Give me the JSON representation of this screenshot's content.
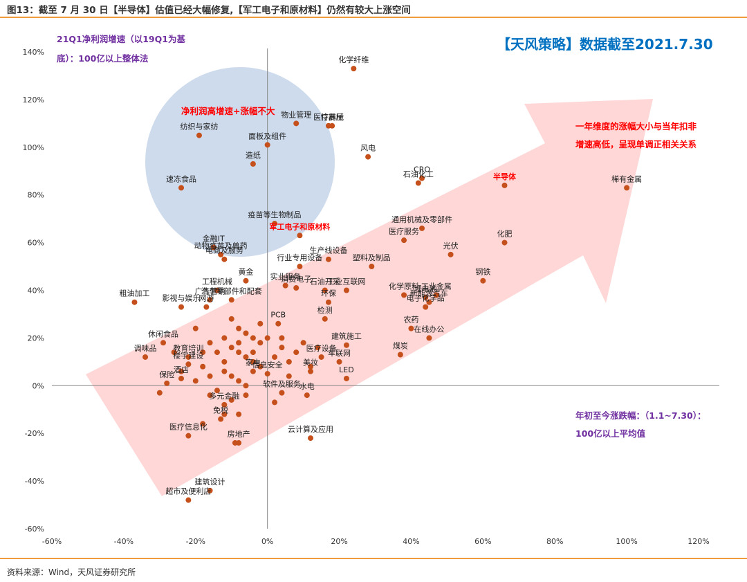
{
  "figure_title": "图13：截至 7 月 30 日【半导体】估值已经大幅修复,【军工电子和原材料】仍然有较大上涨空间",
  "source": "资料来源：Wind，天风证券研究所",
  "annotations": {
    "ylabel_line1": "21Q1净利润增速（以19Q1为基",
    "ylabel_line2": "底）：100亿以上整体法",
    "watermark": "【天风策略】数据截至2021.7.30",
    "circle_label": "净利润高增速+涨幅不大",
    "right_note_line1": "一年维度的涨幅大小与当年扣非",
    "right_note_line2": "增速高低，呈现单调正相关关系",
    "xlabel_line1": "年初至今涨跌幅：（1.1~7.30）：",
    "xlabel_line2": "100亿以上平均值"
  },
  "colors": {
    "point": "#c5501c",
    "arrow": "#ffd0d0",
    "circle": "#c9d7ea",
    "highlight": "#ff0000",
    "accent_purple": "#7030a0",
    "accent_blue": "#0070c0",
    "rule": "#ef9a3c"
  },
  "chart_data": {
    "type": "scatter",
    "xlim": [
      -60,
      120
    ],
    "ylim": [
      -60,
      140
    ],
    "x_ticks": [
      -60,
      -40,
      -20,
      0,
      20,
      40,
      60,
      80,
      100,
      120
    ],
    "y_ticks": [
      -60,
      -40,
      -20,
      0,
      20,
      40,
      60,
      80,
      100,
      120,
      140
    ],
    "x_tick_labels": [
      "-60%",
      "-40%",
      "-20%",
      "0%",
      "20%",
      "40%",
      "60%",
      "80%",
      "100%",
      "120%"
    ],
    "y_tick_labels": [
      "-60%",
      "-40%",
      "-20%",
      "0%",
      "20%",
      "40%",
      "60%",
      "80%",
      "100%",
      "120%",
      "140%"
    ],
    "grid": false,
    "labeled_points": [
      {
        "name": "化学纤维",
        "x": 24,
        "y": 133
      },
      {
        "name": "特高压",
        "x": 18,
        "y": 109
      },
      {
        "name": "医疗器械",
        "x": 17,
        "y": 109
      },
      {
        "name": "风电",
        "x": 28,
        "y": 96
      },
      {
        "name": "稀有金属",
        "x": 100,
        "y": 83
      },
      {
        "name": "半导体",
        "x": 66,
        "y": 84
      },
      {
        "name": "CRO",
        "x": 43,
        "y": 87
      },
      {
        "name": "石油化工",
        "x": 42,
        "y": 85
      },
      {
        "name": "纺织与家纺",
        "x": -19,
        "y": 105
      },
      {
        "name": "面板及组件",
        "x": 0,
        "y": 101
      },
      {
        "name": "造纸",
        "x": -4,
        "y": 93
      },
      {
        "name": "速冻食品",
        "x": -24,
        "y": 83
      },
      {
        "name": "物业管理",
        "x": 8,
        "y": 110
      },
      {
        "name": "疫苗等生物制品",
        "x": 2,
        "y": 68
      },
      {
        "name": "军工电子和原材料",
        "x": 9,
        "y": 63
      },
      {
        "name": "通用机械及零部件",
        "x": 43,
        "y": 66
      },
      {
        "name": "医疗服务",
        "x": 38,
        "y": 61
      },
      {
        "name": "化肥",
        "x": 66,
        "y": 60
      },
      {
        "name": "光伏",
        "x": 51,
        "y": 55
      },
      {
        "name": "金融IT",
        "x": -15,
        "y": 58
      },
      {
        "name": "动物疫苗及兽药",
        "x": -13,
        "y": 55
      },
      {
        "name": "电商及服务",
        "x": -12,
        "y": 53
      },
      {
        "name": "生产线设备",
        "x": 17,
        "y": 53
      },
      {
        "name": "行业专用设备",
        "x": 9,
        "y": 50
      },
      {
        "name": "塑料及制品",
        "x": 29,
        "y": 50
      },
      {
        "name": "钢铁",
        "x": 60,
        "y": 44
      },
      {
        "name": "黄金",
        "x": -6,
        "y": 44
      },
      {
        "name": "粗油加工",
        "x": -37,
        "y": 35
      },
      {
        "name": "工程机械",
        "x": -14,
        "y": 40
      },
      {
        "name": "广告营销",
        "x": -16,
        "y": 36
      },
      {
        "name": "汽车零部件和配套",
        "x": -10,
        "y": 36
      },
      {
        "name": "影视与娱乐",
        "x": -24,
        "y": 33
      },
      {
        "name": "网游",
        "x": -17,
        "y": 33
      },
      {
        "name": "实业服务",
        "x": 5,
        "y": 42
      },
      {
        "name": "消费电子",
        "x": 8,
        "y": 41
      },
      {
        "name": "石油开采",
        "x": 16,
        "y": 40
      },
      {
        "name": "工业互联网",
        "x": 22,
        "y": 40
      },
      {
        "name": "化学原料",
        "x": 38,
        "y": 38
      },
      {
        "name": "锂电池",
        "x": 44,
        "y": 37
      },
      {
        "name": "工业金属",
        "x": 47,
        "y": 38
      },
      {
        "name": "新能源汽车",
        "x": 45,
        "y": 35
      },
      {
        "name": "PCB",
        "x": 3,
        "y": 26
      },
      {
        "name": "环保",
        "x": 17,
        "y": 35
      },
      {
        "name": "电子化学品",
        "x": 44,
        "y": 33
      },
      {
        "name": "检测",
        "x": 16,
        "y": 28
      },
      {
        "name": "农药",
        "x": 40,
        "y": 24
      },
      {
        "name": "在线办公",
        "x": 45,
        "y": 20
      },
      {
        "name": "煤炭",
        "x": 37,
        "y": 13
      },
      {
        "name": "调味品",
        "x": -34,
        "y": 12
      },
      {
        "name": "休闲食品",
        "x": -29,
        "y": 18
      },
      {
        "name": "教育培训",
        "x": -22,
        "y": 12
      },
      {
        "name": "楼宇建设",
        "x": -22,
        "y": 9
      },
      {
        "name": "酒店",
        "x": -24,
        "y": 3
      },
      {
        "name": "保险",
        "x": -28,
        "y": 1
      },
      {
        "name": "家电",
        "x": -4,
        "y": 6
      },
      {
        "name": "信息安全",
        "x": 0,
        "y": 5
      },
      {
        "name": "美妆",
        "x": 12,
        "y": 6
      },
      {
        "name": "LED",
        "x": 22,
        "y": 3
      },
      {
        "name": "车联网",
        "x": 20,
        "y": 10
      },
      {
        "name": "医疗设备",
        "x": 15,
        "y": 12
      },
      {
        "name": "建筑施工",
        "x": 22,
        "y": 17
      },
      {
        "name": "水电",
        "x": 11,
        "y": -4
      },
      {
        "name": "软件及服务",
        "x": 4,
        "y": -3
      },
      {
        "name": "多元金融",
        "x": -12,
        "y": -8
      },
      {
        "name": "免税",
        "x": -13,
        "y": -14
      },
      {
        "name": "医疗信息化",
        "x": -22,
        "y": -21
      },
      {
        "name": "房地产",
        "x": -8,
        "y": -24
      },
      {
        "name": "云计算及应用",
        "x": 12,
        "y": -22
      },
      {
        "name": "建筑设计",
        "x": -16,
        "y": -44
      },
      {
        "name": "超市及便利店",
        "x": -22,
        "y": -48
      }
    ],
    "unlabeled_points": [
      {
        "x": -10,
        "y": 28
      },
      {
        "x": -8,
        "y": 24
      },
      {
        "x": -6,
        "y": 22
      },
      {
        "x": -4,
        "y": 20
      },
      {
        "x": -2,
        "y": 18
      },
      {
        "x": -10,
        "y": 16
      },
      {
        "x": -8,
        "y": 14
      },
      {
        "x": -6,
        "y": 12
      },
      {
        "x": -4,
        "y": 10
      },
      {
        "x": -2,
        "y": 8
      },
      {
        "x": -12,
        "y": 6
      },
      {
        "x": -10,
        "y": 4
      },
      {
        "x": -8,
        "y": 2
      },
      {
        "x": -6,
        "y": 0
      },
      {
        "x": -14,
        "y": -2
      },
      {
        "x": -16,
        "y": 4
      },
      {
        "x": -18,
        "y": 8
      },
      {
        "x": -12,
        "y": 10
      },
      {
        "x": -14,
        "y": 14
      },
      {
        "x": -16,
        "y": 18
      },
      {
        "x": -12,
        "y": 20
      },
      {
        "x": -8,
        "y": 18
      },
      {
        "x": -4,
        "y": 14
      },
      {
        "x": 2,
        "y": 12
      },
      {
        "x": 4,
        "y": 16
      },
      {
        "x": 6,
        "y": 10
      },
      {
        "x": 8,
        "y": 14
      },
      {
        "x": 10,
        "y": 18
      },
      {
        "x": 12,
        "y": 8
      },
      {
        "x": -20,
        "y": 24
      },
      {
        "x": -18,
        "y": 14
      },
      {
        "x": -20,
        "y": 2
      },
      {
        "x": -24,
        "y": 6
      },
      {
        "x": -26,
        "y": 14
      },
      {
        "x": -2,
        "y": 26
      },
      {
        "x": 0,
        "y": 20
      },
      {
        "x": -6,
        "y": -4
      },
      {
        "x": -10,
        "y": -6
      },
      {
        "x": -12,
        "y": -12
      },
      {
        "x": -8,
        "y": -12
      },
      {
        "x": 2,
        "y": -7
      },
      {
        "x": -18,
        "y": -16
      },
      {
        "x": -9,
        "y": -24
      },
      {
        "x": 4,
        "y": 20
      },
      {
        "x": 6,
        "y": 4
      },
      {
        "x": 14,
        "y": 16
      },
      {
        "x": -30,
        "y": -3
      },
      {
        "x": -16,
        "y": -4
      }
    ]
  }
}
